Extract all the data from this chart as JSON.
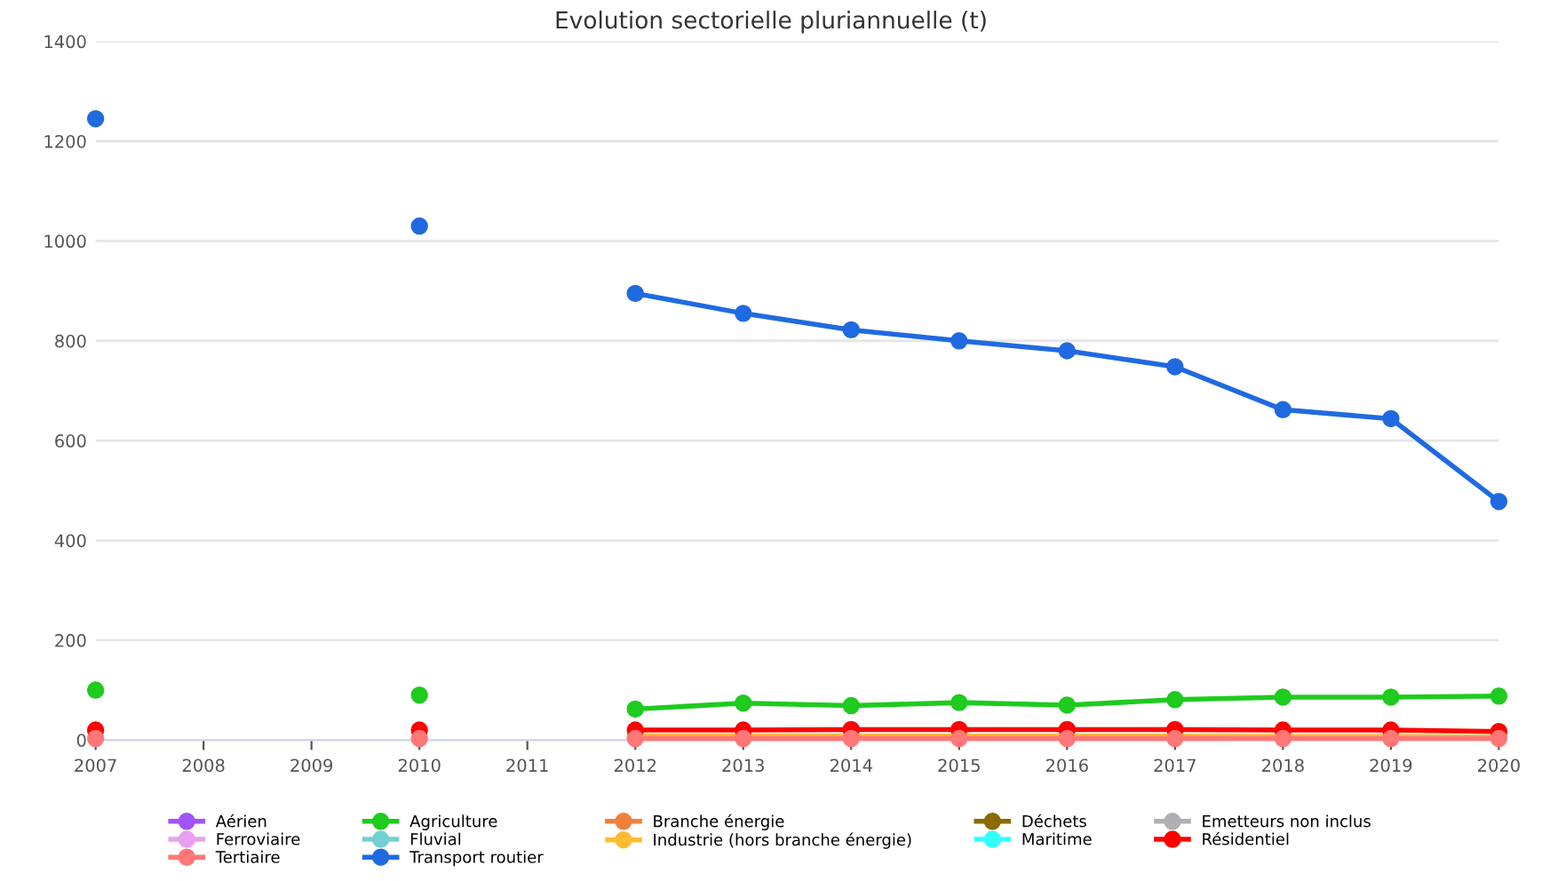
{
  "chart_data": {
    "type": "line",
    "title": "Evolution sectorielle pluriannuelle (t)",
    "x": [
      2007,
      2008,
      2009,
      2010,
      2011,
      2012,
      2013,
      2014,
      2015,
      2016,
      2017,
      2018,
      2019,
      2020
    ],
    "xlim": [
      2007,
      2020
    ],
    "xticks": [
      2007,
      2008,
      2009,
      2010,
      2011,
      2012,
      2013,
      2014,
      2015,
      2016,
      2017,
      2018,
      2019,
      2020
    ],
    "ylim": [
      0,
      1400
    ],
    "yticks": [
      0,
      200,
      400,
      600,
      800,
      1000,
      1200,
      1400
    ],
    "grid": "y",
    "legend": "bottom",
    "marker": "circle",
    "line_style": "solid",
    "series": [
      {
        "name": "Aérien",
        "color": "#a155f5",
        "values": [
          null,
          null,
          null,
          null,
          null,
          null,
          null,
          null,
          null,
          null,
          null,
          null,
          null,
          null
        ]
      },
      {
        "name": "Agriculture",
        "color": "#1ecb1e",
        "values": [
          100,
          null,
          null,
          90,
          null,
          62,
          74,
          69,
          75,
          70,
          81,
          86,
          86,
          88
        ]
      },
      {
        "name": "Branche énergie",
        "color": "#f0803c",
        "values": [
          null,
          null,
          null,
          null,
          null,
          null,
          null,
          null,
          null,
          null,
          null,
          null,
          null,
          null
        ]
      },
      {
        "name": "Déchets",
        "color": "#8b6a00",
        "values": [
          null,
          null,
          null,
          null,
          null,
          null,
          null,
          null,
          null,
          null,
          null,
          null,
          null,
          null
        ]
      },
      {
        "name": "Emetteurs non inclus",
        "color": "#b0b0b0",
        "values": [
          null,
          null,
          null,
          null,
          null,
          null,
          null,
          null,
          null,
          null,
          null,
          null,
          null,
          null
        ]
      },
      {
        "name": "Ferroviaire",
        "color": "#e8a0f0",
        "values": [
          null,
          null,
          null,
          null,
          null,
          null,
          null,
          null,
          null,
          null,
          null,
          null,
          null,
          null
        ]
      },
      {
        "name": "Fluvial",
        "color": "#74d0d0",
        "values": [
          null,
          null,
          null,
          null,
          null,
          null,
          null,
          null,
          null,
          null,
          null,
          null,
          null,
          null
        ]
      },
      {
        "name": "Industrie (hors branche énergie)",
        "color": "#ffbb33",
        "values": [
          null,
          null,
          null,
          null,
          null,
          8,
          8,
          8,
          8,
          8,
          8,
          7,
          7,
          6
        ]
      },
      {
        "name": "Maritime",
        "color": "#33ffff",
        "values": [
          null,
          null,
          null,
          null,
          null,
          null,
          null,
          null,
          null,
          null,
          null,
          null,
          null,
          null
        ]
      },
      {
        "name": "Résidentiel",
        "color": "#ff0000",
        "values": [
          20,
          null,
          null,
          20,
          null,
          20,
          20,
          21,
          21,
          21,
          21,
          20,
          20,
          17
        ]
      },
      {
        "name": "Tertiaire",
        "color": "#ff7777",
        "values": [
          3,
          null,
          null,
          3,
          null,
          3,
          3,
          3,
          3,
          3,
          3,
          3,
          3,
          3
        ]
      },
      {
        "name": "Transport routier",
        "color": "#1f6ae0",
        "values": [
          1245,
          null,
          null,
          1030,
          null,
          895,
          855,
          822,
          800,
          780,
          748,
          662,
          644,
          478
        ]
      }
    ]
  }
}
